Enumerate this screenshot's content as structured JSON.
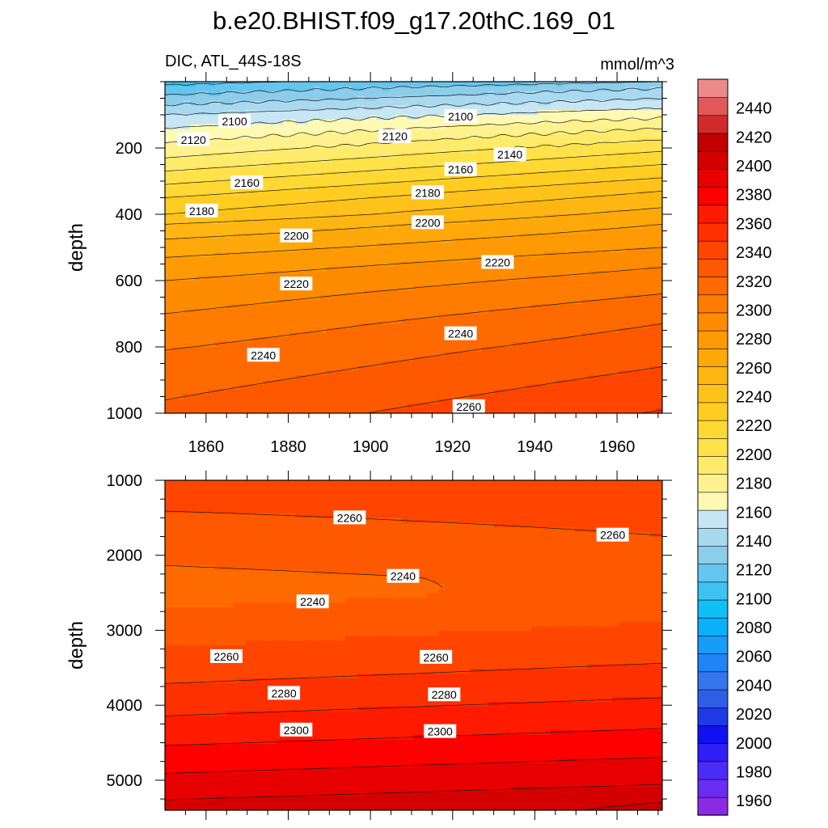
{
  "figure": {
    "title": "b.e20.BHIST.f09_g17.20thC.169_01",
    "left_label": "DIC, ATL_44S-18S",
    "right_label": "mmol/m^3"
  },
  "chart_data": [
    {
      "type": "heatmap",
      "panel": "upper",
      "ylabel": "depth",
      "xlim": [
        1850,
        1971
      ],
      "ylim": [
        0,
        1000
      ],
      "y_inverted": true,
      "x_ticks": [
        1860,
        1880,
        1900,
        1920,
        1940,
        1960
      ],
      "y_ticks": [
        200,
        400,
        600,
        800,
        1000
      ],
      "contour_interval": 10,
      "field": {
        "description": "DIC at depth z and year x; isolines approximate",
        "isolines_depth_1850": [
          {
            "value": 2090,
            "depth": 40
          },
          {
            "value": 2100,
            "depth": 70
          },
          {
            "value": 2110,
            "depth": 100
          },
          {
            "value": 2120,
            "depth": 140
          },
          {
            "value": 2130,
            "depth": 185
          },
          {
            "value": 2140,
            "depth": 230
          },
          {
            "value": 2150,
            "depth": 270
          },
          {
            "value": 2160,
            "depth": 310
          },
          {
            "value": 2170,
            "depth": 350
          },
          {
            "value": 2180,
            "depth": 400
          },
          {
            "value": 2190,
            "depth": 430
          },
          {
            "value": 2200,
            "depth": 475
          },
          {
            "value": 2210,
            "depth": 530
          },
          {
            "value": 2220,
            "depth": 600
          },
          {
            "value": 2230,
            "depth": 700
          },
          {
            "value": 2240,
            "depth": 810
          },
          {
            "value": 2250,
            "depth": 960
          }
        ],
        "isolines_depth_1971": [
          {
            "value": 2090,
            "depth": 0
          },
          {
            "value": 2100,
            "depth": 20
          },
          {
            "value": 2110,
            "depth": 50
          },
          {
            "value": 2120,
            "depth": 80
          },
          {
            "value": 2130,
            "depth": 110
          },
          {
            "value": 2140,
            "depth": 140
          },
          {
            "value": 2150,
            "depth": 175
          },
          {
            "value": 2160,
            "depth": 210
          },
          {
            "value": 2170,
            "depth": 250
          },
          {
            "value": 2180,
            "depth": 290
          },
          {
            "value": 2190,
            "depth": 330
          },
          {
            "value": 2200,
            "depth": 380
          },
          {
            "value": 2210,
            "depth": 430
          },
          {
            "value": 2220,
            "depth": 500
          },
          {
            "value": 2230,
            "depth": 560
          },
          {
            "value": 2240,
            "depth": 640
          },
          {
            "value": 2250,
            "depth": 730
          },
          {
            "value": 2260,
            "depth": 860
          }
        ]
      },
      "contour_labels": [
        {
          "text": "2100",
          "x": 1863,
          "y": 120
        },
        {
          "text": "2100",
          "x": 1918,
          "y": 105
        },
        {
          "text": "2120",
          "x": 1853,
          "y": 175
        },
        {
          "text": "2120",
          "x": 1902,
          "y": 165
        },
        {
          "text": "2140",
          "x": 1930,
          "y": 220
        },
        {
          "text": "2160",
          "x": 1918,
          "y": 265
        },
        {
          "text": "2160",
          "x": 1866,
          "y": 305
        },
        {
          "text": "2180",
          "x": 1910,
          "y": 335
        },
        {
          "text": "2180",
          "x": 1855,
          "y": 390
        },
        {
          "text": "2200",
          "x": 1910,
          "y": 425
        },
        {
          "text": "2200",
          "x": 1878,
          "y": 465
        },
        {
          "text": "2220",
          "x": 1927,
          "y": 545
        },
        {
          "text": "2220",
          "x": 1878,
          "y": 610
        },
        {
          "text": "2240",
          "x": 1918,
          "y": 760
        },
        {
          "text": "2240",
          "x": 1870,
          "y": 825
        },
        {
          "text": "2260",
          "x": 1920,
          "y": 980
        }
      ]
    },
    {
      "type": "heatmap",
      "panel": "lower",
      "ylabel": "depth",
      "xlim": [
        1850,
        1971
      ],
      "ylim": [
        1000,
        5400
      ],
      "y_inverted": true,
      "x_ticks": [
        1860,
        1880,
        1900,
        1920,
        1940,
        1960
      ],
      "y_ticks": [
        1000,
        2000,
        3000,
        4000,
        5000
      ],
      "contour_interval": 10,
      "field": {
        "description": "Deep DIC: a 2240 tongue centred near 2400 m spanning the record to about 1920; values rise below 3000 m toward 2310+ at the bottom"
      },
      "contour_labels": [
        {
          "text": "2260",
          "x": 1891,
          "y": 1500
        },
        {
          "text": "2260",
          "x": 1955,
          "y": 1730
        },
        {
          "text": "2240",
          "x": 1904,
          "y": 2280
        },
        {
          "text": "2240",
          "x": 1882,
          "y": 2620
        },
        {
          "text": "2260",
          "x": 1861,
          "y": 3350
        },
        {
          "text": "2260",
          "x": 1912,
          "y": 3360
        },
        {
          "text": "2280",
          "x": 1875,
          "y": 3840
        },
        {
          "text": "2280",
          "x": 1914,
          "y": 3860
        },
        {
          "text": "2300",
          "x": 1878,
          "y": 4330
        },
        {
          "text": "2300",
          "x": 1913,
          "y": 4350
        }
      ]
    }
  ],
  "colorbar": {
    "min": 1950,
    "max": 2460,
    "step": 10,
    "labels": [
      "2440",
      "2420",
      "2400",
      "2380",
      "2360",
      "2340",
      "2320",
      "2300",
      "2280",
      "2260",
      "2240",
      "2220",
      "2200",
      "2180",
      "2160",
      "2140",
      "2120",
      "2100",
      "2080",
      "2060",
      "2040",
      "2020",
      "2000",
      "1980",
      "1960"
    ],
    "label_values": [
      2440,
      2420,
      2400,
      2380,
      2360,
      2340,
      2320,
      2300,
      2280,
      2260,
      2240,
      2220,
      2200,
      2180,
      2160,
      2140,
      2120,
      2100,
      2080,
      2060,
      2040,
      2020,
      2000,
      1980,
      1960
    ],
    "colors_low_to_high": [
      "#8a2be2",
      "#6a2cf0",
      "#4b2cf6",
      "#2f1ef5",
      "#1010f0",
      "#1e3ae6",
      "#2f5ee6",
      "#3575ee",
      "#1f84f5",
      "#179cf8",
      "#0ab0fa",
      "#10bff6",
      "#3cc3f2",
      "#64c6ee",
      "#8ccdea",
      "#a9d9ef",
      "#c6e6f4",
      "#fff9b4",
      "#fff28e",
      "#ffeb6b",
      "#ffe24a",
      "#ffd833",
      "#ffcd22",
      "#ffc21a",
      "#ffb612",
      "#ffa80a",
      "#ff9a05",
      "#ff8b00",
      "#ff7c00",
      "#ff6a00",
      "#ff5900",
      "#ff4500",
      "#ff3000",
      "#ff1a00",
      "#ff0000",
      "#e80000",
      "#d40000",
      "#c30000",
      "#d22a2a",
      "#e05858",
      "#ec8a8a"
    ]
  }
}
